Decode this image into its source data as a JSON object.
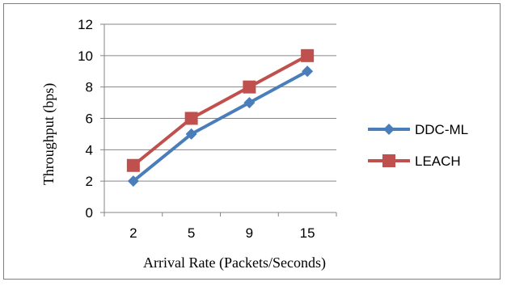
{
  "chart_data": {
    "type": "line",
    "categories": [
      "2",
      "5",
      "9",
      "15"
    ],
    "series": [
      {
        "name": "DDC-ML",
        "values": [
          2,
          5,
          7,
          9
        ],
        "color": "#4a7ebb",
        "marker": "diamond"
      },
      {
        "name": "LEACH",
        "values": [
          3,
          6,
          8,
          10
        ],
        "color": "#c0504d",
        "marker": "square"
      }
    ],
    "xlabel": "Arrival Rate (Packets/Seconds)",
    "ylabel": "Throughput (bps)",
    "ylim": [
      0,
      12
    ],
    "yticks": [
      "0",
      "2",
      "4",
      "6",
      "8",
      "10",
      "12"
    ],
    "grid": true,
    "legend_position": "right"
  }
}
